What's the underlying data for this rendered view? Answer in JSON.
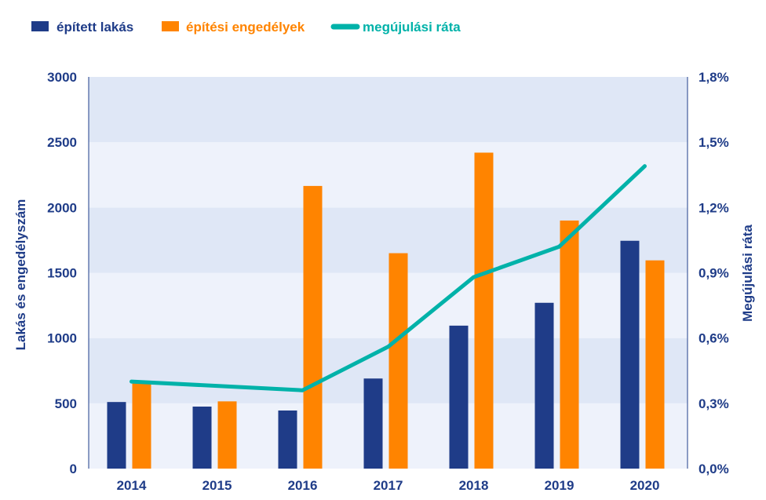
{
  "colors": {
    "built": "#1f3c88",
    "permits": "#ff8400",
    "rate": "#00b2a9",
    "axis_text": "#1f3c88",
    "band_dark": "#dfe7f6",
    "band_light": "#eef2fb"
  },
  "legend": {
    "built": "épített lakás",
    "permits": "építési engedélyek",
    "rate": "megújulási ráta"
  },
  "chart_data": {
    "type": "bar",
    "categories": [
      "2014",
      "2015",
      "2016",
      "2017",
      "2018",
      "2019",
      "2020"
    ],
    "series": [
      {
        "name": "épített lakás",
        "type": "bar",
        "axis": "left",
        "values": [
          510,
          475,
          445,
          690,
          1095,
          1270,
          1745
        ]
      },
      {
        "name": "építési engedélyek",
        "type": "bar",
        "axis": "left",
        "values": [
          665,
          515,
          2165,
          1650,
          2420,
          1900,
          1595
        ]
      },
      {
        "name": "megújulási ráta",
        "type": "line",
        "axis": "right",
        "values": [
          0.4,
          0.38,
          0.36,
          0.56,
          0.88,
          1.02,
          1.39
        ]
      }
    ],
    "ylabel": "Lakás és engedélyszám",
    "y2label": "Megújulási ráta",
    "ylim": [
      0,
      3000
    ],
    "y2lim": [
      0,
      1.8
    ],
    "yticks": [
      "0",
      "500",
      "1000",
      "1500",
      "2000",
      "2500",
      "3000"
    ],
    "y2ticks": [
      "0,0%",
      "0,3%",
      "0,6%",
      "0,9%",
      "1,2%",
      "1,5%",
      "1,8%"
    ],
    "grid": "alternating horizontal bands",
    "legend_position": "top-left"
  }
}
